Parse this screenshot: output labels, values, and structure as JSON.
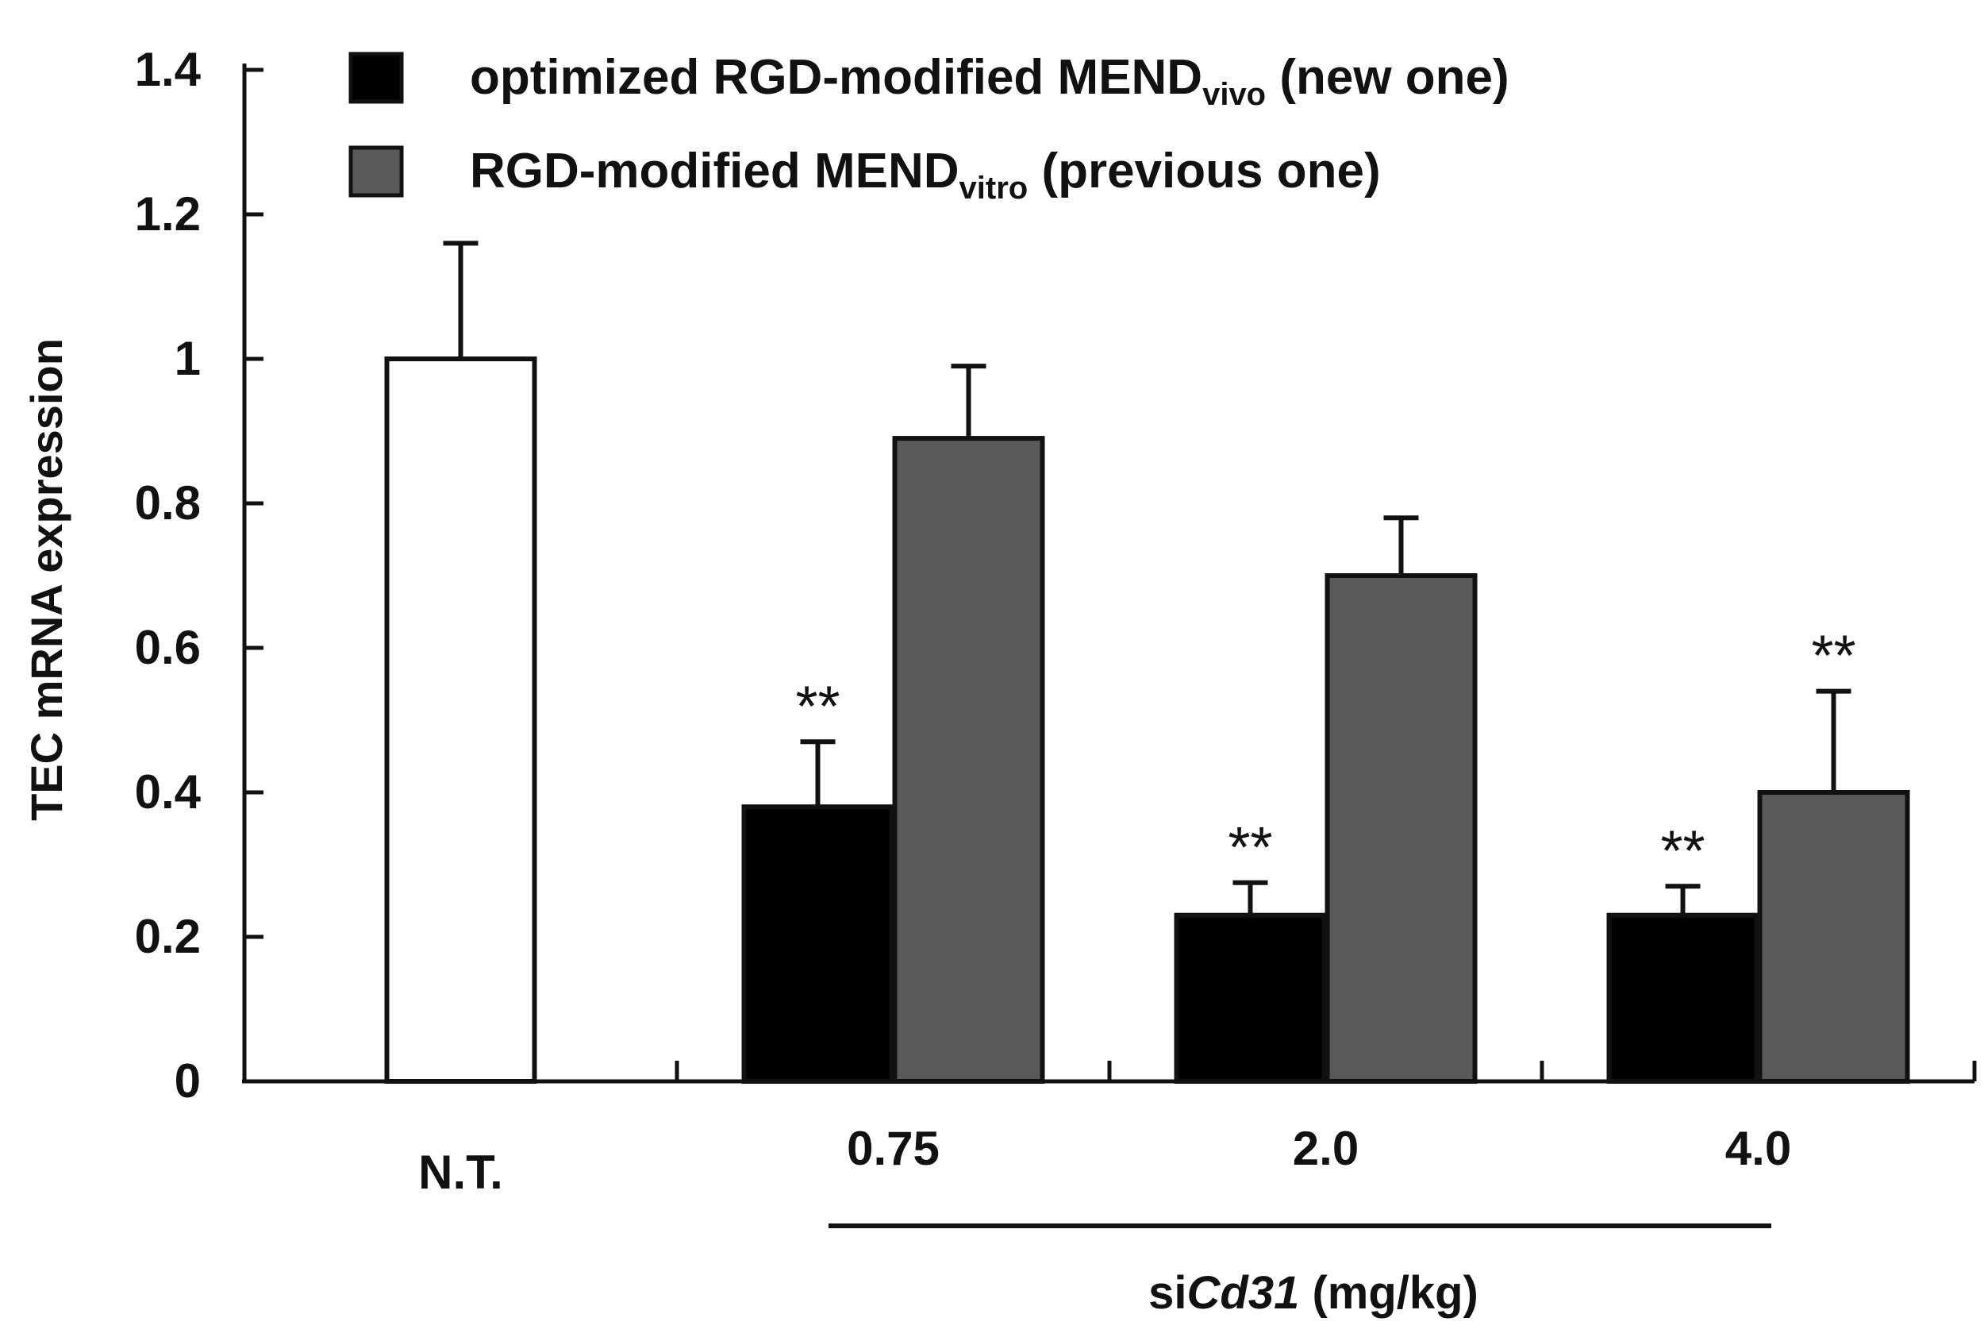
{
  "chart_data": {
    "type": "bar",
    "ylabel": "TEC mRNA expression",
    "xlabel_prefix": "si",
    "xlabel_gene": "Cd31",
    "xlabel_suffix": " (mg/kg)",
    "ylim": [
      0,
      1.4
    ],
    "yticks": [
      "0",
      "0.2",
      "0.4",
      "0.6",
      "0.8",
      "1",
      "1.2",
      "1.4"
    ],
    "grid": false,
    "legend_position": "top-left",
    "categories": [
      "N.T.",
      "0.75",
      "2.0",
      "4.0"
    ],
    "control": {
      "category": "N.T.",
      "value": 1.0,
      "error": 0.16,
      "color": "#ffffff"
    },
    "series": [
      {
        "legend_main": "optimized RGD-modified MEND",
        "legend_sub": "vivo",
        "legend_tail": "(new one)",
        "color": "#000000",
        "values": [
          null,
          0.38,
          0.23,
          0.23
        ],
        "errors": [
          null,
          0.09,
          0.045,
          0.04
        ],
        "annotations": [
          null,
          "**",
          "**",
          "**"
        ]
      },
      {
        "legend_main": "RGD-modified MEND",
        "legend_sub": "vitro",
        "legend_tail": "(previous one)",
        "color": "#595959",
        "values": [
          null,
          0.89,
          0.7,
          0.4
        ],
        "errors": [
          null,
          0.1,
          0.08,
          0.14
        ],
        "annotations": [
          null,
          null,
          null,
          "**"
        ]
      }
    ]
  }
}
